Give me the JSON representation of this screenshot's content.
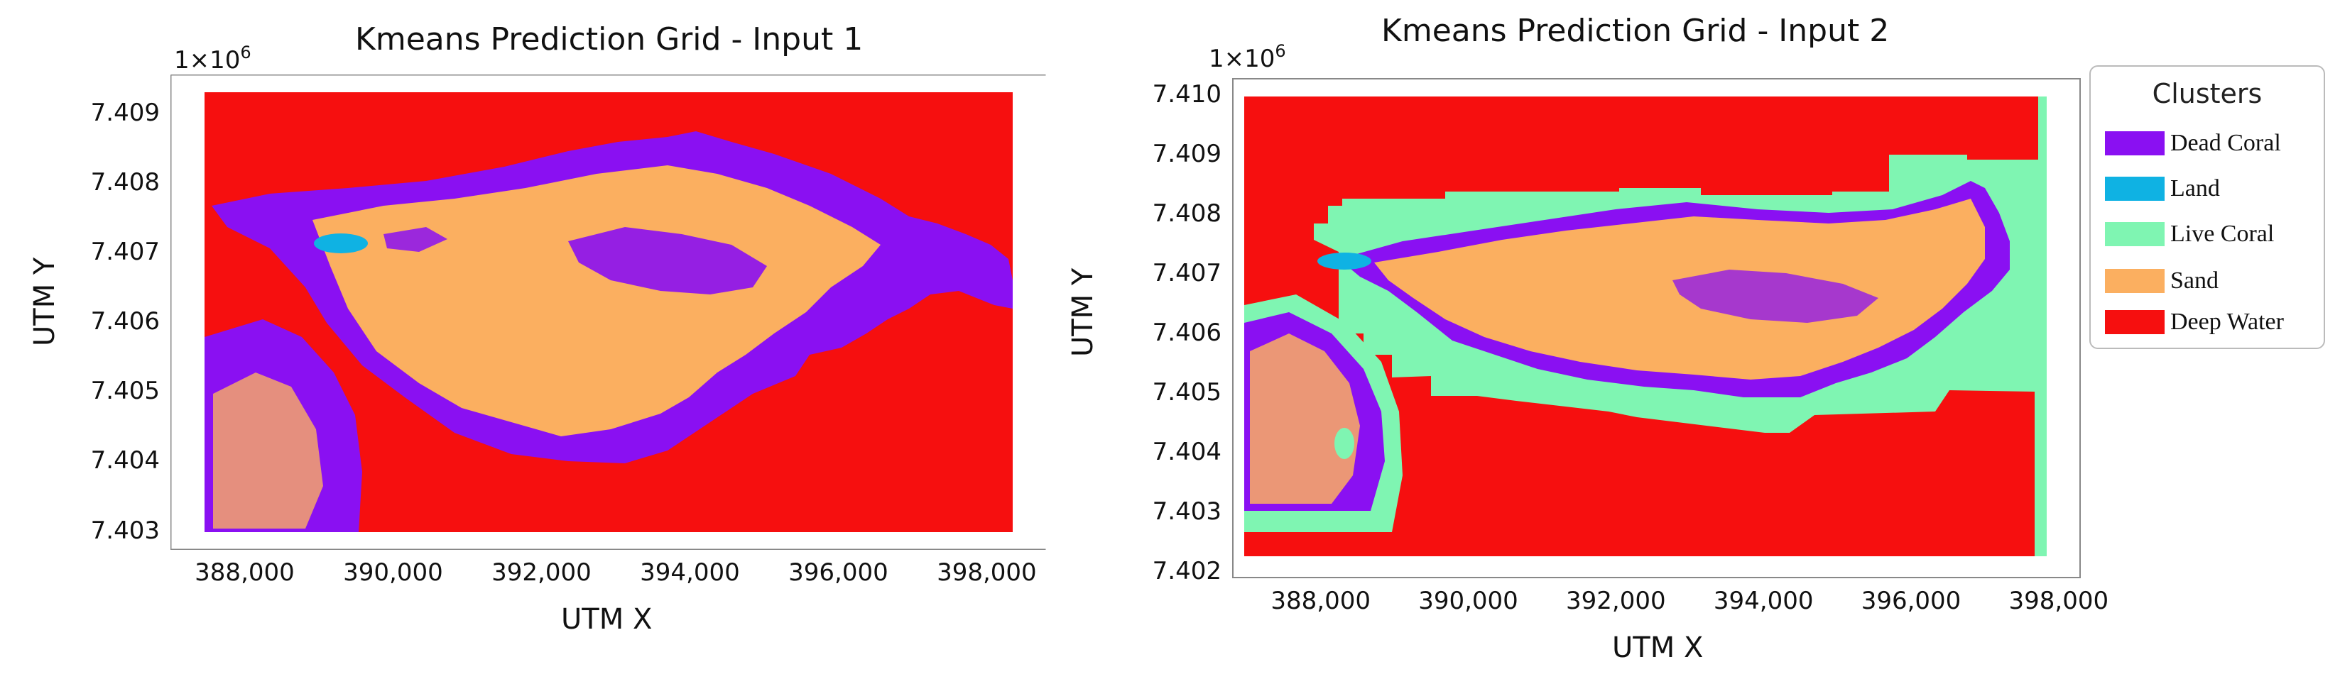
{
  "chart_data": [
    {
      "type": "heatmap",
      "title": "Kmeans Prediction Grid - Input 1",
      "xlabel": "UTM X",
      "ylabel": "UTM Y",
      "y_multiplier": "1×10",
      "y_multiplier_exp": "6",
      "xlim": [
        387000,
        398800
      ],
      "ylim": [
        7.40272,
        7.40955
      ],
      "x_ticks": [
        {
          "value": 388000,
          "label": "388,000"
        },
        {
          "value": 390000,
          "label": "390,000"
        },
        {
          "value": 392000,
          "label": "392,000"
        },
        {
          "value": 394000,
          "label": "394,000"
        },
        {
          "value": 396000,
          "label": "396,000"
        },
        {
          "value": 398000,
          "label": "398,000"
        }
      ],
      "y_ticks": [
        {
          "value": 7.403,
          "label": "7.403"
        },
        {
          "value": 7.404,
          "label": "7.404"
        },
        {
          "value": 7.405,
          "label": "7.405"
        },
        {
          "value": 7.406,
          "label": "7.406"
        },
        {
          "value": 7.407,
          "label": "7.407"
        },
        {
          "value": 7.408,
          "label": "7.408"
        },
        {
          "value": 7.409,
          "label": "7.409"
        }
      ],
      "classes": [
        "Dead Coral",
        "Land",
        "Live Coral",
        "Sand",
        "Deep Water"
      ]
    },
    {
      "type": "heatmap",
      "title": "Kmeans Prediction Grid - Input 2",
      "xlabel": "UTM X",
      "ylabel": "UTM Y",
      "y_multiplier": "1×10",
      "y_multiplier_exp": "6",
      "xlim": [
        386800,
        398300
      ],
      "ylim": [
        7.40188,
        7.41027
      ],
      "x_ticks": [
        {
          "value": 388000,
          "label": "388,000"
        },
        {
          "value": 390000,
          "label": "390,000"
        },
        {
          "value": 392000,
          "label": "392,000"
        },
        {
          "value": 394000,
          "label": "394,000"
        },
        {
          "value": 396000,
          "label": "396,000"
        },
        {
          "value": 398000,
          "label": "398,000"
        }
      ],
      "y_ticks": [
        {
          "value": 7.402,
          "label": "7.402"
        },
        {
          "value": 7.403,
          "label": "7.403"
        },
        {
          "value": 7.404,
          "label": "7.404"
        },
        {
          "value": 7.405,
          "label": "7.405"
        },
        {
          "value": 7.406,
          "label": "7.406"
        },
        {
          "value": 7.407,
          "label": "7.407"
        },
        {
          "value": 7.408,
          "label": "7.408"
        },
        {
          "value": 7.409,
          "label": "7.409"
        },
        {
          "value": 7.41,
          "label": "7.410"
        }
      ],
      "classes": [
        "Dead Coral",
        "Land",
        "Live Coral",
        "Sand",
        "Deep Water"
      ]
    }
  ],
  "legend": {
    "title": "Clusters",
    "items": [
      {
        "label": "Dead Coral",
        "color": "#8a10f2"
      },
      {
        "label": "Land",
        "color": "#0fb2e3"
      },
      {
        "label": "Live Coral",
        "color": "#7ff5b2"
      },
      {
        "label": "Sand",
        "color": "#fbaf60"
      },
      {
        "label": "Deep Water",
        "color": "#f60f0f"
      }
    ]
  },
  "colors": {
    "dead_coral": "#8a10f2",
    "land": "#0fb2e3",
    "live_coral": "#7ff5b2",
    "sand": "#fbaf60",
    "deep_water": "#f60f0f"
  }
}
